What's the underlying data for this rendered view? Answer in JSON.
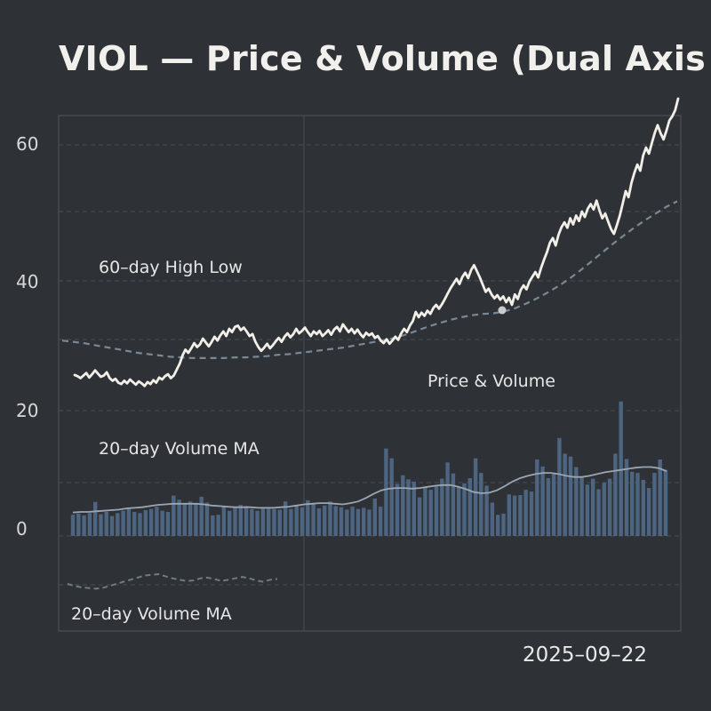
{
  "title": "VIOL — Price & Volume (Dual Axis",
  "date_label": "2025–09–22",
  "colors": {
    "background": "#2e3236",
    "frame": "#4a4f55",
    "grid": "#4a4f55",
    "price_line": "#f2efe8",
    "price_ma": "#7b8794",
    "volume_bar": "#4d6580",
    "volume_ma": "#9aa6b2",
    "lower_dashed": "#6f7a86"
  },
  "chart_data": {
    "type": "line",
    "title": "VIOL — Price & Volume (Dual Axis",
    "xlabel": "",
    "ylabel": "",
    "y_ticks": [
      "60",
      "40",
      "20",
      "0"
    ],
    "ylim": [
      -15,
      70
    ],
    "grid": true,
    "annotations": [
      "60–day High Low",
      "Price & Volume",
      "20–day Volume MA",
      "20–day Volume MA"
    ],
    "series": [
      {
        "type": "line",
        "values": [
          25.5,
          25.3,
          25,
          25.4,
          25.8,
          25.1,
          25.6,
          26.2,
          25.7,
          25.2,
          25.4,
          25.9,
          25,
          24.6,
          24.9,
          24.3,
          24.1,
          24.6,
          24.2,
          24.8,
          24.4,
          24,
          24.5,
          24.2,
          23.8,
          24.4,
          24.1,
          24.7,
          24.3,
          25.1,
          24.8,
          25.3,
          25.6,
          25,
          25.4,
          26.3,
          27.2,
          28.5,
          29.4,
          28.9,
          29.6,
          30.4,
          29.8,
          30.2,
          31.1,
          30.5,
          29.9,
          30.6,
          31.4,
          30.8,
          31.6,
          32.2,
          31.5,
          32.6,
          32.1,
          32.9,
          33.1,
          32.4,
          32.8,
          32.2,
          31.5,
          31.8,
          30.6,
          29.8,
          29.2,
          29.7,
          30.3,
          29.6,
          30.1,
          30.7,
          31.2,
          30.6,
          31.4,
          31.9,
          31.3,
          31.8,
          32.6,
          31.9,
          32.3,
          32.8,
          32.1,
          31.5,
          32.2,
          31.8,
          32.3,
          31.5,
          31.9,
          32.4,
          31.7,
          32.5,
          32.9,
          32.2,
          33.3,
          32.7,
          32.1,
          32.6,
          31.9,
          32.5,
          31.8,
          31.3,
          32,
          31.6,
          31.9,
          31.2,
          31.5,
          30.8,
          30.4,
          31,
          30.3,
          30.8,
          31.4,
          30.9,
          31.9,
          32.6,
          32.1,
          33.1,
          33.8,
          35.2,
          34.4,
          35.1,
          34.6,
          35.4,
          34.9,
          35.8,
          36.3,
          35.7,
          36.4,
          37.2,
          38.1,
          38.9,
          39.6,
          40.3,
          39.5,
          40.6,
          41.2,
          40.4,
          41.6,
          42.3,
          41.4,
          40.5,
          39.4,
          38.3,
          38.8,
          37.9,
          37.3,
          37.8,
          37.1,
          37.6,
          36.7,
          37.4,
          36.3,
          37.9,
          37.2,
          38.6,
          39.3,
          38.7,
          39.9,
          40.6,
          41.3,
          40.5,
          41.9,
          43.1,
          44.2,
          45.6,
          46.3,
          45.2,
          46.8,
          47.9,
          48.6,
          47.8,
          49.2,
          48.3,
          49.6,
          48.8,
          50.2,
          49.4,
          50.6,
          51.3,
          50.5,
          51.8,
          50.4,
          49.2,
          49.9,
          48.7,
          47.6,
          46.9,
          48.2,
          49.6,
          51.4,
          53.2,
          52.3,
          54.4,
          55.9,
          57.1,
          56.2,
          58.4,
          59.6,
          58.7,
          60.3,
          61.8,
          62.9,
          61.7,
          60.8,
          62.1,
          63.6,
          64.2,
          65.1,
          66.8
        ]
      },
      {
        "type": "line",
        "style": "dashed",
        "values": [
          30.8,
          30.6,
          30.4,
          30.1,
          29.8,
          29.5,
          29.2,
          28.9,
          28.7,
          28.5,
          28.3,
          28.2,
          28.1,
          28.1,
          28.1,
          28.1,
          28.2,
          28.2,
          28.3,
          28.4,
          28.6,
          28.7,
          28.9,
          29.1,
          29.3,
          29.5,
          29.7,
          30,
          30.3,
          30.6,
          30.9,
          31.3,
          31.8,
          32.4,
          33,
          33.5,
          34,
          34.4,
          34.7,
          34.9,
          35,
          35.3,
          35.8,
          36.5,
          37.3,
          38.2,
          39.2,
          40.3,
          41.5,
          42.8,
          44.1,
          45.4,
          46.6,
          47.8,
          48.9,
          49.9,
          50.9,
          51.7
        ]
      },
      {
        "type": "bar",
        "values": [
          2.1,
          2.3,
          2.0,
          2.4,
          4.3,
          2.2,
          2.6,
          1.9,
          2.4,
          2.8,
          3.2,
          2.6,
          2.4,
          2.9,
          3.1,
          3.5,
          2.8,
          2.6,
          5.4,
          4.7,
          3.9,
          4.4,
          4.1,
          5.2,
          4.2,
          2.0,
          2.1,
          3.5,
          2.8,
          3.3,
          3.8,
          3.6,
          3.1,
          2.8,
          3.2,
          3.3,
          3.1,
          3.0,
          4.4,
          3.1,
          3.6,
          3.4,
          4.6,
          4.0,
          3.2,
          3.7,
          4.4,
          3.6,
          3.4,
          3.0,
          3.5,
          3.1,
          3.3,
          3.0,
          4.9,
          3.5,
          13.5,
          11.8,
          7.4,
          8.9,
          8.2,
          7.8,
          5.1,
          6.8,
          6.4,
          7.0,
          8.3,
          11.1,
          9.2,
          6.9,
          7.5,
          8.4,
          11.8,
          9.3,
          7.1,
          4.2,
          2.1,
          2.3,
          5.6,
          5.4,
          5.5,
          6.4,
          6.1,
          11.6,
          10.4,
          8.4,
          9.1,
          15.3,
          12.6,
          12.1,
          10.3,
          8.6,
          7.3,
          8.3,
          6.5,
          7.6,
          8.3,
          12.6,
          21.4,
          11.7,
          9.5,
          9.3,
          8.1,
          6.7,
          9.3,
          11.6,
          9.8
        ]
      },
      {
        "type": "line",
        "values": [
          2.5,
          2.6,
          2.6,
          2.7,
          2.8,
          2.9,
          3.0,
          3.2,
          3.3,
          3.4,
          3.6,
          3.8,
          3.9,
          4.0,
          4.0,
          4.0,
          4.0,
          3.9,
          3.7,
          3.6,
          3.5,
          3.4,
          3.4,
          3.4,
          3.3,
          3.3,
          3.3,
          3.4,
          3.5,
          3.7,
          3.9,
          4.0,
          4.1,
          4.1,
          4.0,
          3.9,
          4.1,
          4.4,
          5.0,
          5.7,
          6.3,
          6.6,
          6.7,
          6.7,
          6.6,
          6.7,
          6.9,
          7.1,
          7.2,
          7.2,
          6.9,
          6.5,
          6.0,
          5.8,
          5.9,
          6.3,
          7.0,
          7.8,
          8.4,
          8.8,
          9.1,
          9.3,
          9.3,
          9.1,
          8.8,
          8.6,
          8.6,
          8.8,
          9.1,
          9.4,
          9.6,
          9.8,
          10.0,
          10.2,
          10.3,
          10.3,
          10.1,
          9.6
        ]
      },
      {
        "type": "line",
        "style": "dashed",
        "values": [
          -8.2,
          -8.5,
          -8.7,
          -8.8,
          -8.9,
          -8.8,
          -8.5,
          -8.2,
          -7.9,
          -7.6,
          -7.3,
          -7.0,
          -6.9,
          -6.8,
          -7.1,
          -7.4,
          -7.6,
          -7.8,
          -7.7,
          -7.4,
          -7.3,
          -7.5,
          -7.8,
          -7.6,
          -7.4,
          -7.2,
          -7.4,
          -7.7,
          -7.9,
          -7.6,
          -7.5
        ]
      }
    ]
  }
}
